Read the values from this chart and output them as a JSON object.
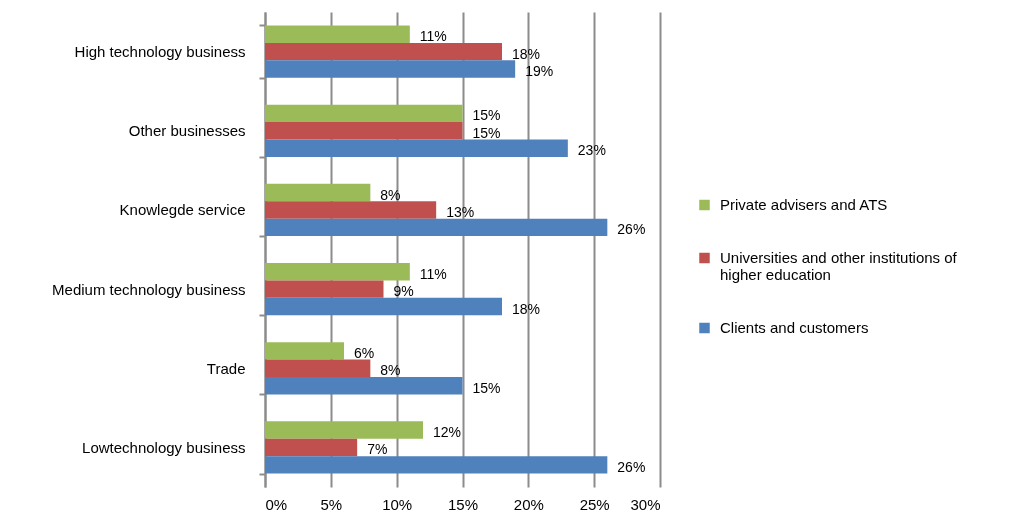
{
  "chart_data": {
    "type": "bar",
    "orientation": "horizontal",
    "categories": [
      "High technology business",
      "Other businesses",
      "Knowlegde service",
      "Medium technology business",
      "Trade",
      "Lowtechnology business"
    ],
    "series": [
      {
        "name": "Private advisers and ATS",
        "color": "#9bbb59",
        "values": [
          11,
          15,
          8,
          11,
          6,
          12
        ],
        "value_labels": [
          "11%",
          "15%",
          "8%",
          "11%",
          "6%",
          "12%"
        ]
      },
      {
        "name": "Universities and other institutions of higher education",
        "color": "#c0504d",
        "values": [
          18,
          15,
          13,
          9,
          8,
          7
        ],
        "value_labels": [
          "18%",
          "15%",
          "13%",
          "9%",
          "8%",
          "7%"
        ]
      },
      {
        "name": "Clients and customers",
        "color": "#4f81bd",
        "values": [
          19,
          23,
          26,
          18,
          15,
          26
        ],
        "value_labels": [
          "19%",
          "23%",
          "26%",
          "18%",
          "15%",
          "26%"
        ]
      }
    ],
    "xlim": [
      0,
      30
    ],
    "xticks": [
      {
        "value": 0,
        "label": "0%"
      },
      {
        "value": 5,
        "label": "5%"
      },
      {
        "value": 10,
        "label": "10%"
      },
      {
        "value": 15,
        "label": "15%"
      },
      {
        "value": 20,
        "label": "20%"
      },
      {
        "value": 25,
        "label": "25%"
      },
      {
        "value": 30,
        "label": "30%"
      }
    ],
    "grid": "x",
    "legend": "right"
  }
}
